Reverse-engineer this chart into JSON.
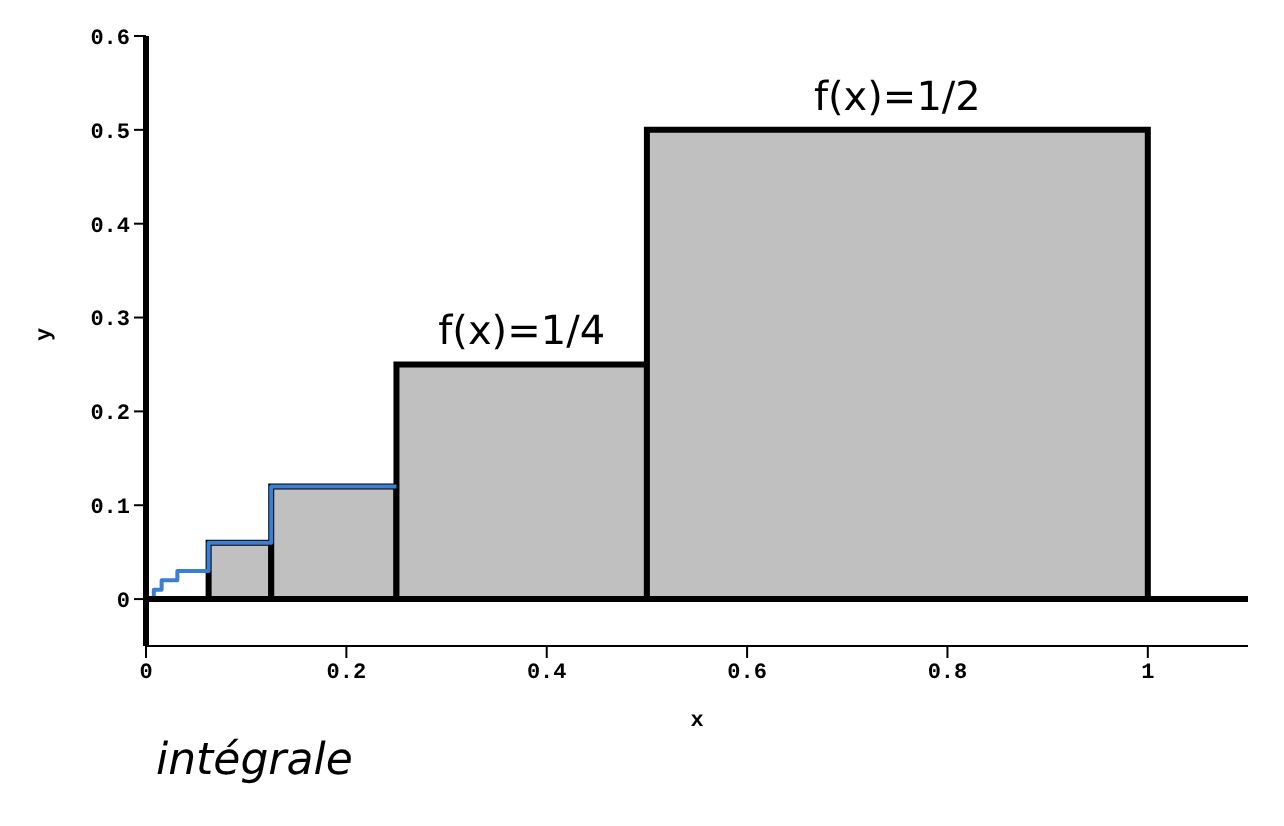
{
  "chart_data": {
    "type": "histogram",
    "xlabel": "x",
    "ylabel": "y",
    "xlim": [
      0,
      1.1
    ],
    "ylim": [
      -0.05,
      0.6
    ],
    "xticks": [
      0,
      0.2,
      0.4,
      0.6,
      0.8,
      1
    ],
    "yticks": [
      0,
      0.1,
      0.2,
      0.3,
      0.4,
      0.5,
      0.6
    ],
    "grid": false,
    "legend": false,
    "series": [
      {
        "type": "histogram",
        "color": "#c0c0c0",
        "bins": [
          0.0625,
          0.125,
          0.25,
          0.5,
          1
        ],
        "values": [
          0.06,
          0.12,
          0.25,
          0.5
        ]
      },
      {
        "type": "step",
        "color": "#3a7fd5",
        "x": [
          0.0039,
          0.0078,
          0.0156,
          0.0313,
          0.0625,
          0.125,
          0.25
        ],
        "values": [
          0,
          0.01,
          0.02,
          0.03,
          0.06,
          0.12,
          0.12
        ]
      }
    ],
    "ref_lines": [
      {
        "axis": "y",
        "value": 0,
        "color": "#000000"
      }
    ],
    "annotations": [
      {
        "text": "f(x)=1/2",
        "x": 0.75,
        "y": 0.5
      },
      {
        "text": "f(x)=1/4",
        "x": 0.375,
        "y": 0.25
      },
      "intégrale"
    ]
  }
}
